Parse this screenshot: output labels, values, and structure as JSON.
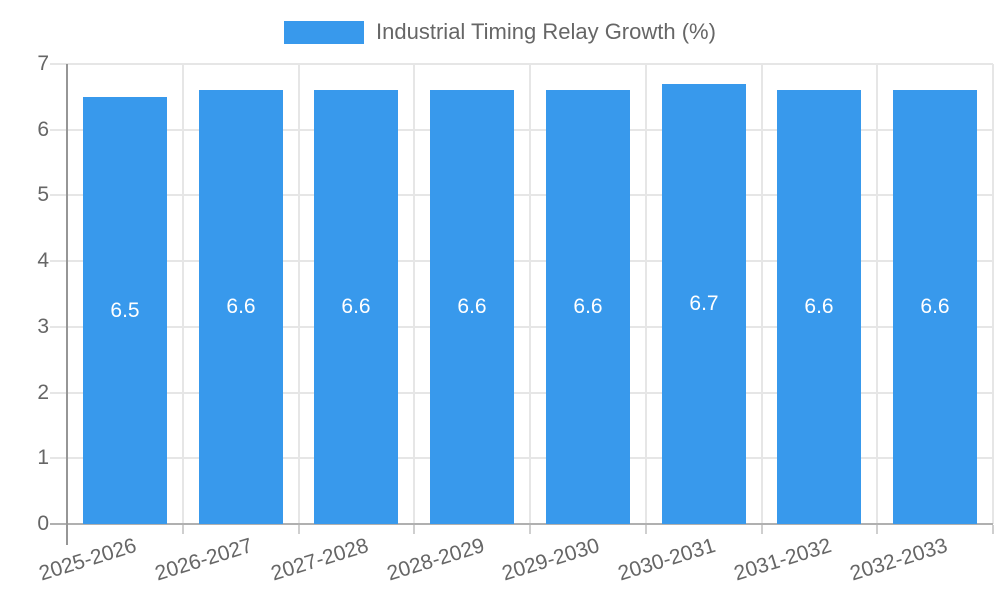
{
  "chart_data": {
    "type": "bar",
    "title": "Industrial Timing Relay Growth (%)",
    "categories": [
      "2025-2026",
      "2026-2027",
      "2027-2028",
      "2028-2029",
      "2029-2030",
      "2030-2031",
      "2031-2032",
      "2032-2033"
    ],
    "values": [
      6.5,
      6.6,
      6.6,
      6.6,
      6.6,
      6.7,
      6.6,
      6.6
    ],
    "value_labels": [
      "6.5",
      "6.6",
      "6.6",
      "6.6",
      "6.6",
      "6.7",
      "6.6",
      "6.6"
    ],
    "y_tick_labels": [
      "0",
      "1",
      "2",
      "3",
      "4",
      "5",
      "6",
      "7"
    ],
    "ylim": [
      0,
      7
    ],
    "xlabel": "",
    "ylabel": "",
    "grid": true,
    "legend_position": "top-center",
    "bar_color": "#3899ec",
    "bar_value_text_color": "#ffffff",
    "axis_text_color": "#666666"
  }
}
